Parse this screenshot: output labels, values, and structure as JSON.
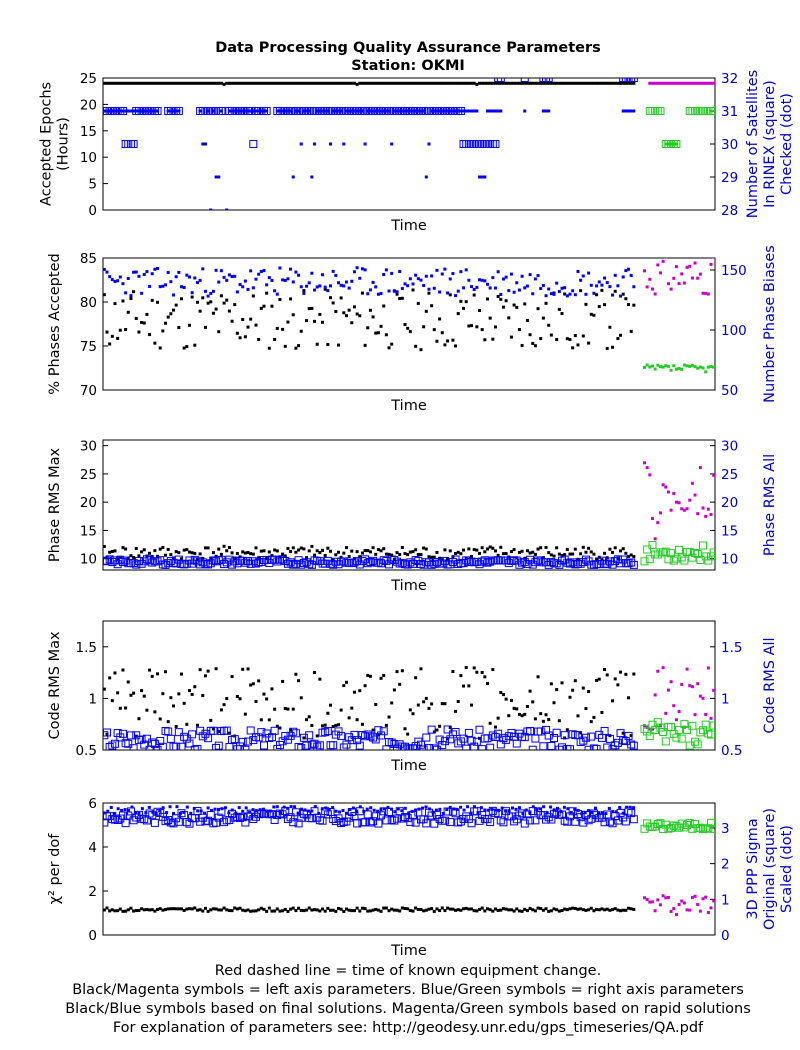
{
  "title": "Data Processing Quality Assurance Parameters",
  "subtitle": "Station: OKMI",
  "colors": {
    "final_left": "#000000",
    "final_right": "#0000ff",
    "rapid_left": "#cc00cc",
    "rapid_right": "#22cc22",
    "axis": "#000000",
    "right_axis": "#0000cc"
  },
  "footer": [
    "Red dashed line = time of known equipment change.",
    "Black/Magenta symbols = left axis parameters. Blue/Green symbols = right axis parameters",
    "Black/Blue symbols based on final solutions.  Magenta/Green symbols based on rapid solutions",
    "For explanation of parameters see: http://geodesy.unr.edu/gps_timeseries/QA.pdf"
  ],
  "chart_data": [
    {
      "type": "scatter",
      "xlabel": "Time",
      "ylabel_lines": [
        "Accepted Epochs",
        "(Hours)"
      ],
      "y2label_lines": [
        "Number of Satellites",
        "In RINEX (square)",
        "Checked (dot)"
      ],
      "ylim": [
        0,
        25
      ],
      "yticks": [
        0,
        5,
        10,
        15,
        20,
        25
      ],
      "y2lim": [
        28,
        32
      ],
      "y2ticks": [
        28,
        29,
        30,
        31,
        32
      ],
      "x_range": [
        0,
        230
      ],
      "rapid_start": 200,
      "left_final": {
        "const": 24,
        "dips": {
          "45": 23.8,
          "95": 23.8,
          "140": 23.8
        }
      },
      "left_rapid": {
        "const": 23.9
      },
      "right_final_square": {
        "base": 31,
        "runs": [
          [
            8,
            12,
            30
          ],
          [
            56,
            57,
            30
          ],
          [
            135,
            148,
            30
          ],
          [
            148,
            200,
            32
          ]
        ],
        "points": [
          [
            1,
            31
          ],
          [
            158,
            31
          ]
        ]
      },
      "right_final_dot": {
        "base": 31,
        "points": [
          [
            40,
            28
          ],
          [
            46,
            28
          ],
          [
            42,
            29
          ],
          [
            43,
            29
          ],
          [
            37,
            30
          ],
          [
            38,
            30
          ],
          [
            74,
            30
          ],
          [
            79,
            30
          ],
          [
            85,
            30
          ],
          [
            90,
            30
          ],
          [
            98,
            30
          ],
          [
            108,
            30
          ],
          [
            122,
            30
          ],
          [
            71,
            29
          ],
          [
            78,
            29
          ],
          [
            121,
            29
          ],
          [
            141,
            29
          ],
          [
            142,
            29
          ],
          [
            143,
            29
          ]
        ],
        "gaps": [
          [
            21,
            24
          ],
          [
            29,
            36
          ],
          [
            45,
            47
          ],
          [
            62,
            65
          ],
          [
            150,
            158
          ],
          [
            159,
            165
          ],
          [
            168,
            195
          ]
        ]
      },
      "right_rapid_square": {
        "segments": [
          [
            205,
            210,
            31
          ],
          [
            211,
            216,
            30
          ],
          [
            220,
            230,
            31
          ]
        ]
      },
      "right_rapid_dot": {
        "base": 31,
        "points": [
          [
            211,
            30
          ],
          [
            212,
            30
          ],
          [
            213,
            30
          ],
          [
            214,
            30
          ],
          [
            215,
            30
          ]
        ]
      },
      "left_rapid_points": {
        "range": [
          205,
          230
        ],
        "value": 24
      }
    },
    {
      "type": "scatter",
      "xlabel": "Time",
      "ylabel_lines": [
        "% Phases Accepted"
      ],
      "y2label_lines": [
        "Number Phase Biases"
      ],
      "ylim": [
        70,
        85
      ],
      "yticks": [
        70,
        75,
        80,
        85
      ],
      "y2lim": [
        50,
        160
      ],
      "y2ticks": [
        50,
        100,
        150
      ],
      "x_range": [
        0,
        230
      ],
      "rapid_start": 200,
      "left_final": {
        "mean": 78,
        "spread": 3.5,
        "seed": 11
      },
      "right_final": {
        "mean": 140,
        "spread": 12,
        "seed": 23
      },
      "left_rapid": {
        "mean": 83,
        "spread": 2.2,
        "seed": 31
      },
      "right_rapid": {
        "mean": 68,
        "spread": 3,
        "seed": 37
      }
    },
    {
      "type": "scatter",
      "xlabel": "Time",
      "ylabel_lines": [
        "Phase RMS Max"
      ],
      "y2label_lines": [
        "Phase RMS All"
      ],
      "ylim": [
        8,
        31
      ],
      "yticks": [
        10,
        15,
        20,
        25,
        30
      ],
      "y2lim": [
        8,
        31
      ],
      "y2ticks": [
        10,
        15,
        20,
        25,
        30
      ],
      "x_range": [
        0,
        230
      ],
      "rapid_start": 200,
      "left_final": {
        "mean": 11,
        "spread": 1.2,
        "seed": 41
      },
      "right_final": {
        "mean": 9.4,
        "spread": 0.5,
        "seed": 43
      },
      "left_rapid": {
        "mean": 20,
        "spread": 7,
        "seed": 47
      },
      "right_rapid": {
        "mean": 11,
        "spread": 1.5,
        "seed": 53
      }
    },
    {
      "type": "scatter",
      "xlabel": "Time",
      "ylabel_lines": [
        "Code RMS Max"
      ],
      "y2label_lines": [
        "Code RMS All"
      ],
      "ylim": [
        0.5,
        1.75
      ],
      "yticks": [
        0.5,
        1,
        1.5
      ],
      "y2lim": [
        0.5,
        1.75
      ],
      "y2ticks": [
        0.5,
        1,
        1.5
      ],
      "x_range": [
        0,
        230
      ],
      "rapid_start": 200,
      "left_final": {
        "mean": 0.95,
        "spread": 0.35,
        "seed": 61
      },
      "right_final": {
        "mean": 0.6,
        "spread": 0.1,
        "seed": 67
      },
      "left_rapid": {
        "mean": 1.0,
        "spread": 0.3,
        "seed": 71
      },
      "right_rapid": {
        "mean": 0.65,
        "spread": 0.12,
        "seed": 73
      }
    },
    {
      "type": "scatter",
      "xlabel": "Time",
      "ylabel_lines": [
        "χ² per dof"
      ],
      "y2label_lines": [
        "3D PPP Sigma",
        "Original (square)",
        "Scaled (dot)"
      ],
      "ylim": [
        0,
        6
      ],
      "yticks": [
        0,
        2,
        4,
        6
      ],
      "y2lim": [
        0,
        3.7
      ],
      "y2ticks": [
        0,
        1,
        2,
        3
      ],
      "x_range": [
        0,
        230
      ],
      "rapid_start": 200,
      "left_final": {
        "mean": 1.15,
        "spread": 0.08,
        "seed": 81
      },
      "right_final": {
        "mean": 3.3,
        "spread": 0.18,
        "seed": 83
      },
      "right_final_dot": {
        "mean": 3.5,
        "spread": 0.1,
        "seed": 89
      },
      "left_rapid": {
        "mean": 1.4,
        "spread": 0.5,
        "seed": 97
      },
      "right_rapid": {
        "mean": 3.05,
        "spread": 0.1,
        "seed": 101
      }
    }
  ]
}
